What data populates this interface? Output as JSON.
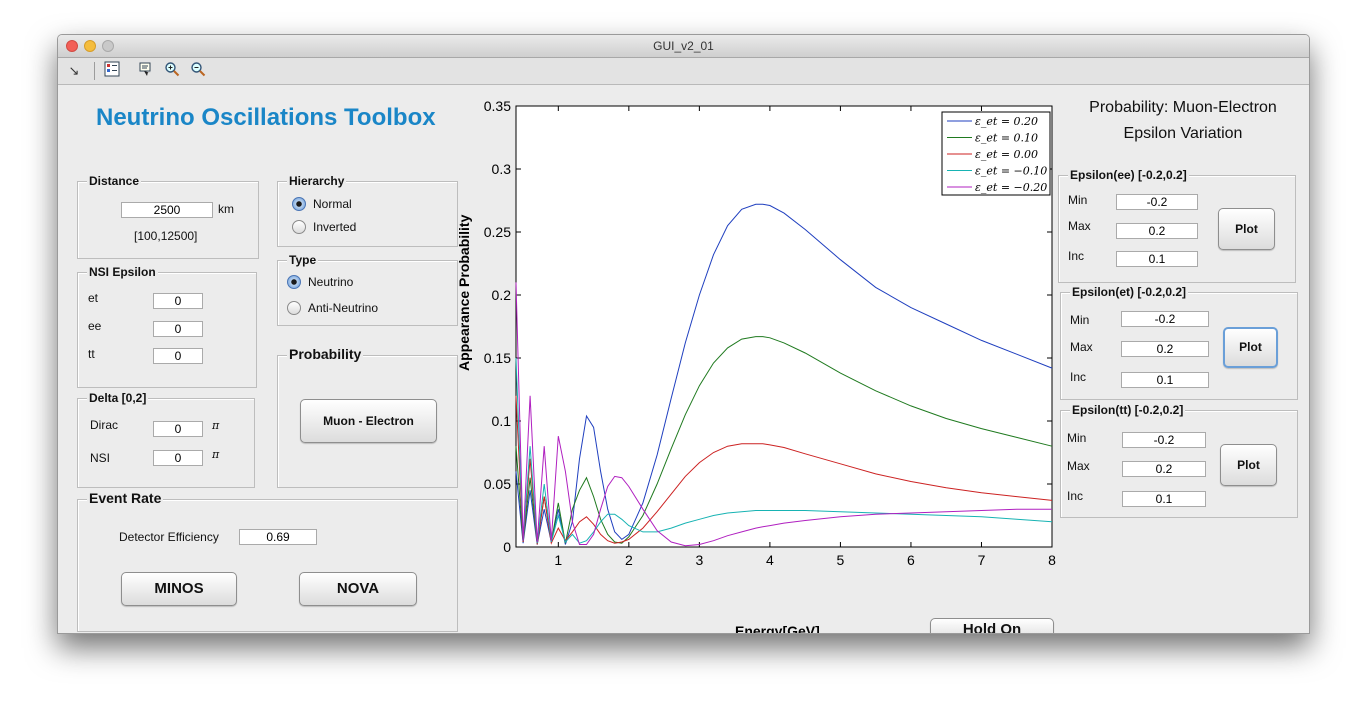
{
  "window": {
    "title": "GUI_v2_01"
  },
  "toolbar": {
    "icons": [
      "arrow-icon",
      "plot-browser-icon",
      "data-cursor-icon",
      "zoom-in-icon",
      "zoom-out-icon"
    ]
  },
  "app_title": "Neutrino Oscillations Toolbox",
  "distance": {
    "title": "Distance",
    "value": "2500",
    "unit": "km",
    "range": "[100,12500]"
  },
  "hierarchy": {
    "title": "Hierarchy",
    "options": [
      "Normal",
      "Inverted"
    ],
    "selected": "Normal"
  },
  "type": {
    "title": "Type",
    "options": [
      "Neutrino",
      "Anti-Neutrino"
    ],
    "selected": "Neutrino"
  },
  "nsi": {
    "title": "NSI Epsilon",
    "rows": [
      {
        "label": "et",
        "value": "0"
      },
      {
        "label": "ee",
        "value": "0"
      },
      {
        "label": "tt",
        "value": "0"
      }
    ]
  },
  "probability": {
    "title": "Probability",
    "button": "Muon - Electron"
  },
  "delta": {
    "title": "Delta [0,2]",
    "rows": [
      {
        "label": "Dirac",
        "value": "0"
      },
      {
        "label": "NSI",
        "value": "0"
      }
    ],
    "unit_symbol": "π"
  },
  "event_rate": {
    "title": "Event Rate",
    "efficiency_label": "Detector Efficiency",
    "efficiency_value": "0.69",
    "buttons": [
      "MINOS",
      "NOVA"
    ]
  },
  "hold_button": "Hold On",
  "right": {
    "title_line1": "Probability: Muon-Electron",
    "title_line2": "Epsilon Variation",
    "panels": [
      {
        "title": "Epsilon(ee) [-0.2,0.2]",
        "min_label": "Min",
        "max_label": "Max",
        "inc_label": "Inc",
        "min": "-0.2",
        "max": "0.2",
        "inc": "0.1",
        "button": "Plot"
      },
      {
        "title": "Epsilon(et) [-0.2,0.2]",
        "min_label": "Min",
        "max_label": "Max",
        "inc_label": "Inc",
        "min": "-0.2",
        "max": "0.2",
        "inc": "0.1",
        "button": "Plot"
      },
      {
        "title": "Epsilon(tt) [-0.2,0.2]",
        "min_label": "Min",
        "max_label": "Max",
        "inc_label": "Inc",
        "min": "-0.2",
        "max": "0.2",
        "inc": "0.1",
        "button": "Plot"
      }
    ]
  },
  "chart_data": {
    "type": "line",
    "xlabel": "Energy[GeV]",
    "ylabel": "Appearance Probability",
    "xlim": [
      0.4,
      8
    ],
    "ylim": [
      0,
      0.35
    ],
    "xticks": [
      "1",
      "2",
      "3",
      "4",
      "5",
      "6",
      "7",
      "8"
    ],
    "yticks": [
      "0",
      "0.05",
      "0.1",
      "0.15",
      "0.2",
      "0.25",
      "0.3",
      "0.35"
    ],
    "legend_position": "top-right",
    "grid": false,
    "series": [
      {
        "name": "ε_et = 0.20",
        "color": "#1f3fbf",
        "x": [
          0.4,
          0.5,
          0.6,
          0.7,
          0.8,
          0.9,
          1.0,
          1.1,
          1.2,
          1.3,
          1.4,
          1.5,
          1.6,
          1.7,
          1.8,
          1.9,
          2.0,
          2.2,
          2.4,
          2.6,
          2.8,
          3.0,
          3.2,
          3.4,
          3.6,
          3.8,
          3.9,
          4.0,
          4.2,
          4.5,
          5.0,
          5.5,
          6.0,
          6.5,
          7.0,
          7.5,
          8.0
        ],
        "y": [
          0.06,
          0.003,
          0.045,
          0.002,
          0.03,
          0.004,
          0.03,
          0.002,
          0.02,
          0.07,
          0.104,
          0.095,
          0.06,
          0.03,
          0.012,
          0.006,
          0.01,
          0.035,
          0.073,
          0.118,
          0.162,
          0.2,
          0.232,
          0.255,
          0.268,
          0.272,
          0.272,
          0.271,
          0.265,
          0.252,
          0.228,
          0.206,
          0.19,
          0.177,
          0.164,
          0.153,
          0.142
        ]
      },
      {
        "name": "ε_et = 0.10",
        "color": "#1f7a1f",
        "x": [
          0.4,
          0.5,
          0.6,
          0.7,
          0.8,
          0.9,
          1.0,
          1.1,
          1.2,
          1.3,
          1.4,
          1.5,
          1.6,
          1.7,
          1.8,
          1.9,
          2.0,
          2.2,
          2.4,
          2.6,
          2.8,
          3.0,
          3.2,
          3.4,
          3.6,
          3.8,
          3.9,
          4.0,
          4.2,
          4.5,
          5.0,
          5.5,
          6.0,
          6.5,
          7.0,
          7.5,
          8.0
        ],
        "y": [
          0.08,
          0.004,
          0.055,
          0.003,
          0.04,
          0.004,
          0.035,
          0.003,
          0.03,
          0.045,
          0.055,
          0.04,
          0.022,
          0.01,
          0.004,
          0.003,
          0.008,
          0.025,
          0.05,
          0.078,
          0.105,
          0.128,
          0.146,
          0.158,
          0.165,
          0.167,
          0.167,
          0.166,
          0.162,
          0.154,
          0.138,
          0.124,
          0.112,
          0.102,
          0.094,
          0.087,
          0.08
        ]
      },
      {
        "name": "ε_et = 0.00",
        "color": "#cc2222",
        "x": [
          0.4,
          0.5,
          0.6,
          0.7,
          0.8,
          0.9,
          1.0,
          1.1,
          1.2,
          1.3,
          1.4,
          1.5,
          1.6,
          1.7,
          1.8,
          1.9,
          2.0,
          2.2,
          2.4,
          2.6,
          2.8,
          3.0,
          3.2,
          3.4,
          3.6,
          3.8,
          3.9,
          4.0,
          4.2,
          4.5,
          5.0,
          5.5,
          6.0,
          6.5,
          7.0,
          7.5,
          8.0
        ],
        "y": [
          0.12,
          0.004,
          0.07,
          0.002,
          0.04,
          0.003,
          0.015,
          0.005,
          0.012,
          0.02,
          0.024,
          0.018,
          0.01,
          0.005,
          0.003,
          0.004,
          0.006,
          0.015,
          0.028,
          0.042,
          0.056,
          0.067,
          0.075,
          0.08,
          0.082,
          0.082,
          0.082,
          0.081,
          0.079,
          0.074,
          0.066,
          0.058,
          0.052,
          0.047,
          0.043,
          0.04,
          0.037
        ]
      },
      {
        "name": "ε_et = −0.10",
        "color": "#17b3b3",
        "x": [
          0.4,
          0.5,
          0.6,
          0.7,
          0.8,
          0.9,
          1.0,
          1.1,
          1.2,
          1.3,
          1.4,
          1.5,
          1.6,
          1.7,
          1.8,
          1.9,
          2.0,
          2.2,
          2.4,
          2.6,
          2.8,
          3.0,
          3.2,
          3.4,
          3.6,
          3.8,
          3.9,
          4.0,
          4.2,
          4.5,
          5.0,
          5.5,
          6.0,
          6.5,
          7.0,
          7.5,
          8.0
        ],
        "y": [
          0.15,
          0.005,
          0.08,
          0.003,
          0.05,
          0.004,
          0.025,
          0.004,
          0.01,
          0.003,
          0.005,
          0.012,
          0.02,
          0.026,
          0.026,
          0.022,
          0.017,
          0.012,
          0.012,
          0.015,
          0.019,
          0.022,
          0.025,
          0.027,
          0.028,
          0.029,
          0.029,
          0.029,
          0.029,
          0.029,
          0.028,
          0.027,
          0.026,
          0.025,
          0.024,
          0.022,
          0.02
        ]
      },
      {
        "name": "ε_et = −0.20",
        "color": "#b020c0",
        "x": [
          0.4,
          0.5,
          0.6,
          0.7,
          0.8,
          0.9,
          1.0,
          1.1,
          1.2,
          1.3,
          1.4,
          1.5,
          1.6,
          1.7,
          1.8,
          1.9,
          2.0,
          2.2,
          2.4,
          2.6,
          2.8,
          3.0,
          3.2,
          3.4,
          3.6,
          3.8,
          3.9,
          4.0,
          4.2,
          4.5,
          5.0,
          5.5,
          6.0,
          6.5,
          7.0,
          7.5,
          8.0
        ],
        "y": [
          0.21,
          0.005,
          0.12,
          0.004,
          0.08,
          0.005,
          0.088,
          0.06,
          0.02,
          0.002,
          0.002,
          0.01,
          0.03,
          0.048,
          0.056,
          0.055,
          0.048,
          0.03,
          0.013,
          0.004,
          0.001,
          0.002,
          0.005,
          0.009,
          0.012,
          0.015,
          0.016,
          0.017,
          0.019,
          0.021,
          0.024,
          0.026,
          0.027,
          0.028,
          0.029,
          0.03,
          0.03
        ]
      }
    ]
  }
}
